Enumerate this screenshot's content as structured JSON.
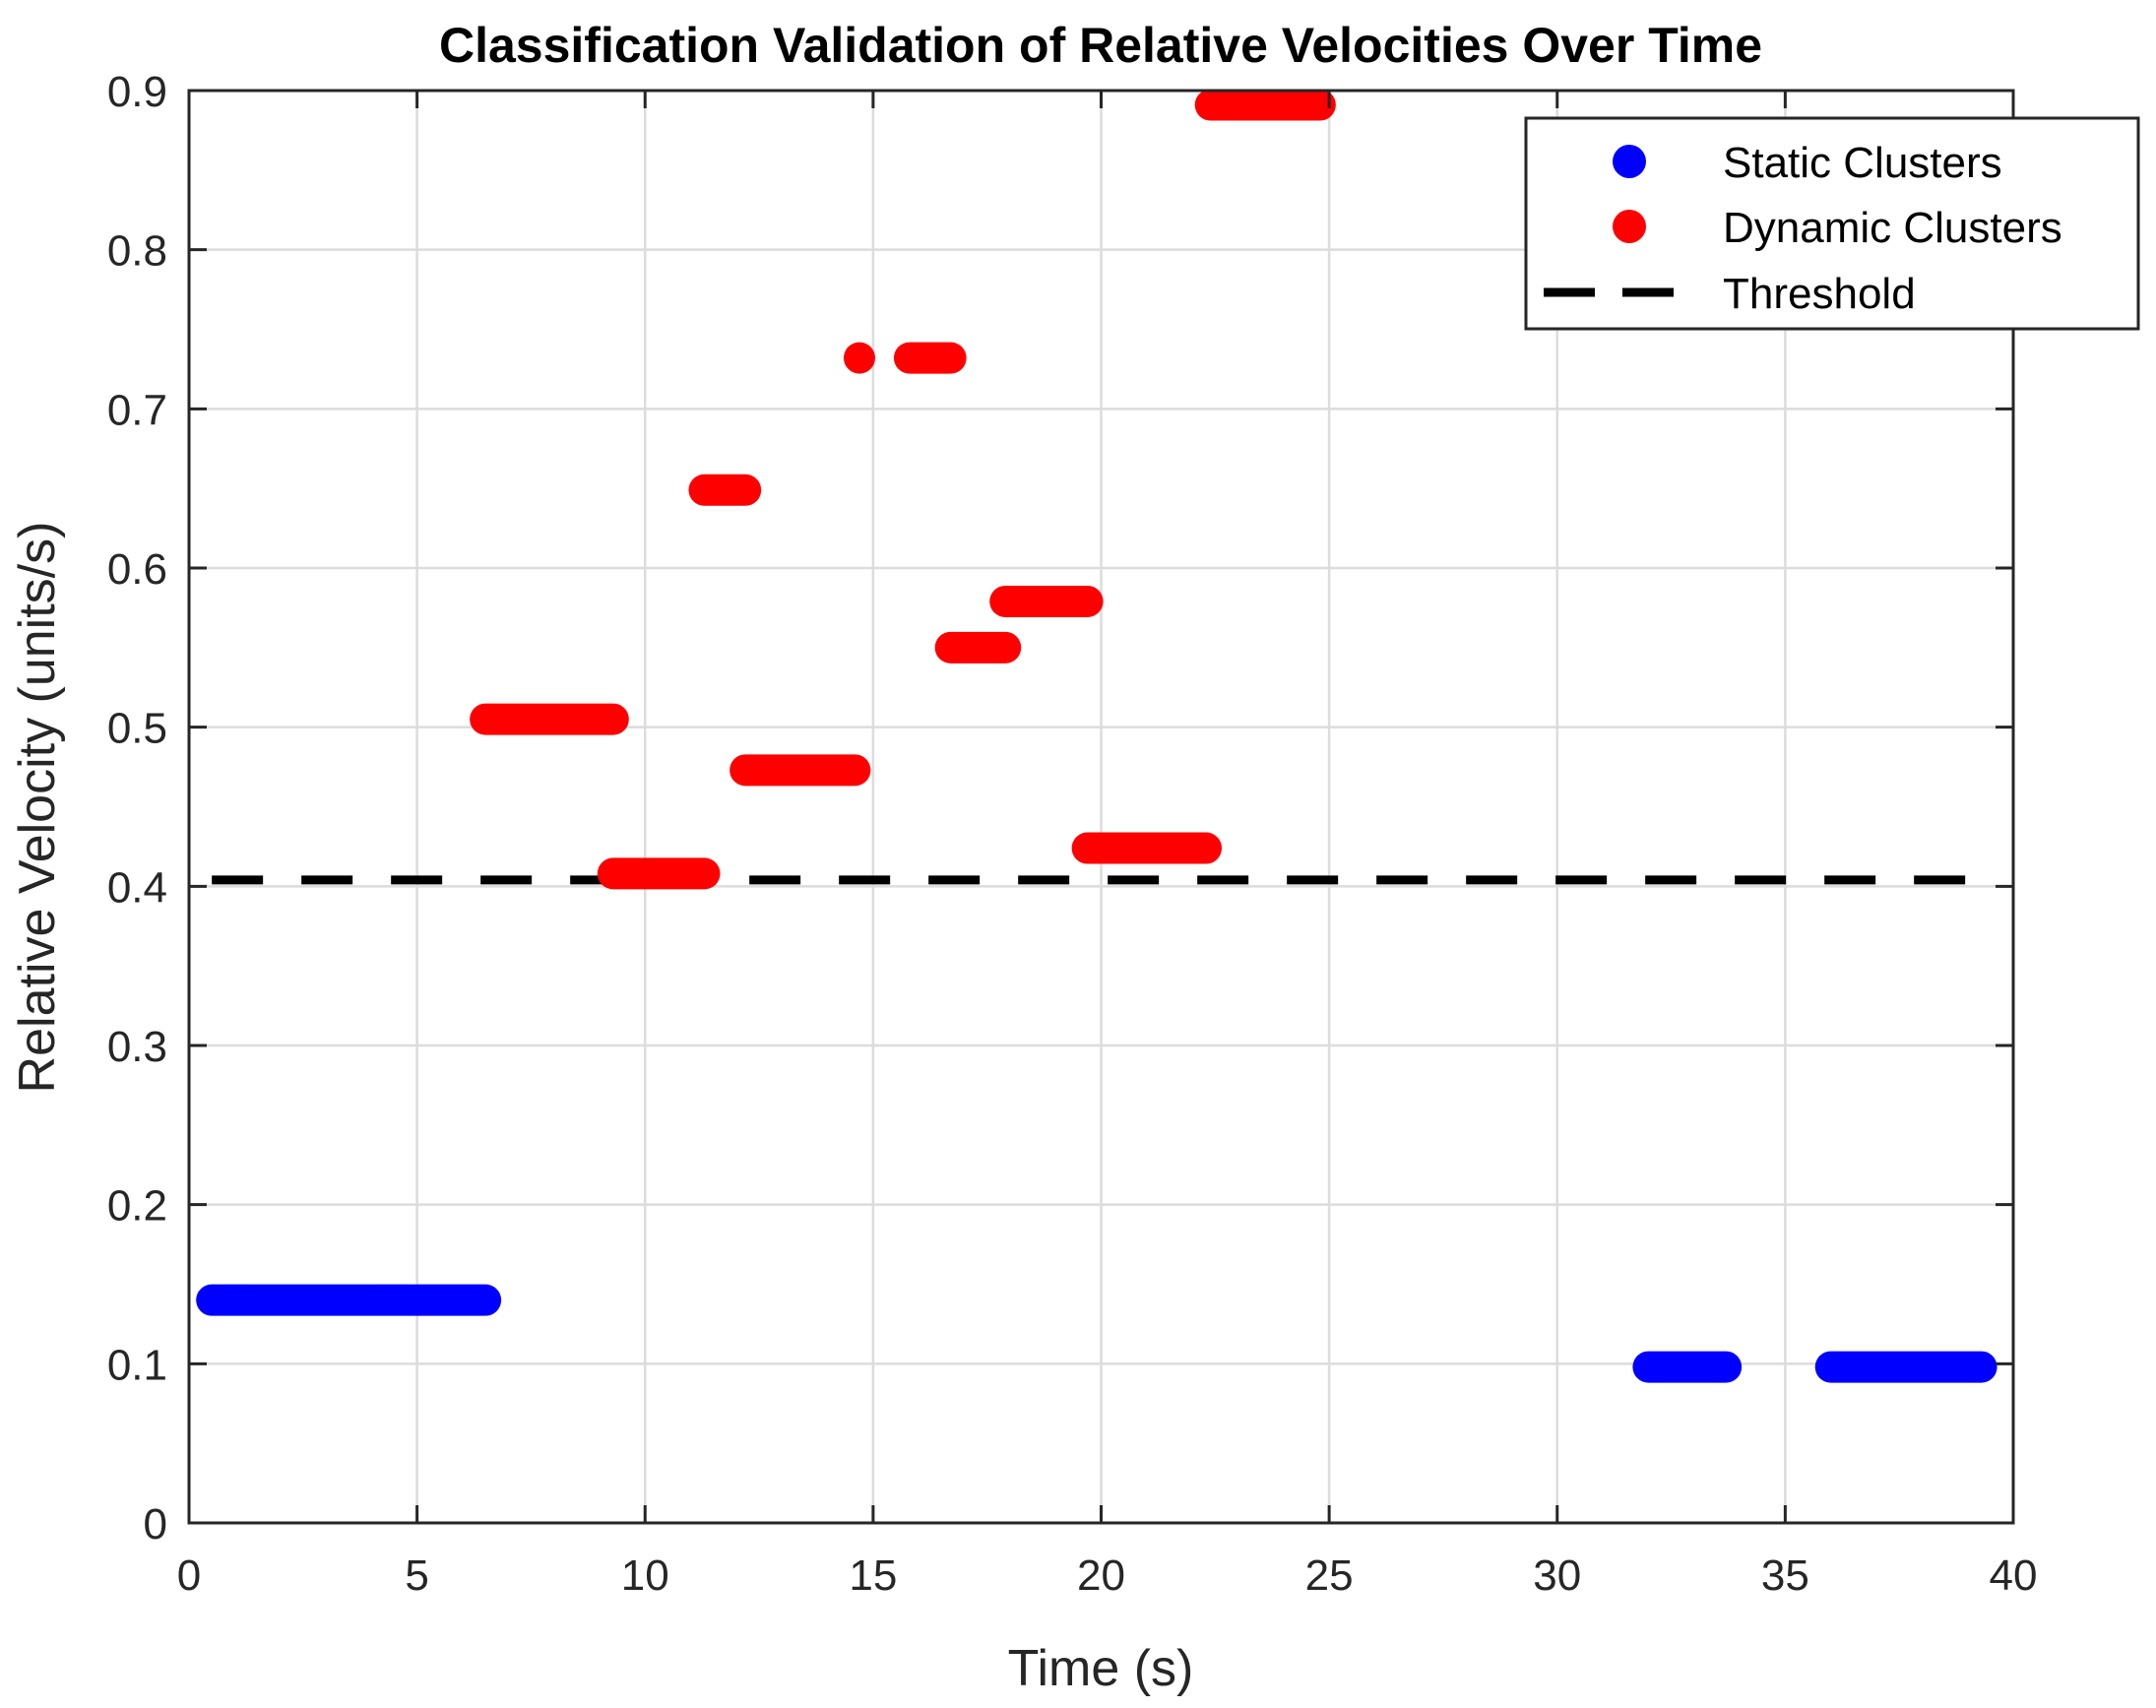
{
  "chart_data": {
    "type": "scatter",
    "title": "Classification Validation of Relative Velocities Over Time",
    "xlabel": "Time (s)",
    "ylabel": "Relative Velocity (units/s)",
    "xlim": [
      0,
      40
    ],
    "ylim": [
      0,
      0.9
    ],
    "xticks": [
      0,
      5,
      10,
      15,
      20,
      25,
      30,
      35,
      40
    ],
    "yticks": [
      0,
      0.1,
      0.2,
      0.3,
      0.4,
      0.5,
      0.6,
      0.7,
      0.8,
      0.9
    ],
    "xtick_labels": [
      "0",
      "5",
      "10",
      "15",
      "20",
      "25",
      "30",
      "35",
      "40"
    ],
    "ytick_labels": [
      "0",
      "0.1",
      "0.2",
      "0.3",
      "0.4",
      "0.5",
      "0.6",
      "0.7",
      "0.8",
      "0.9"
    ],
    "grid": true,
    "legend_position": "top-right",
    "series": [
      {
        "name": "Static Clusters",
        "color": "#0000ff",
        "marker": "filled-circle",
        "segments": [
          {
            "t_start": 0.5,
            "t_end": 6.5,
            "velocity": 0.14
          },
          {
            "t_start": 32.0,
            "t_end": 33.7,
            "velocity": 0.098
          },
          {
            "t_start": 36.0,
            "t_end": 39.3,
            "velocity": 0.098
          }
        ]
      },
      {
        "name": "Dynamic Clusters",
        "color": "#ff0000",
        "marker": "filled-circle",
        "segments": [
          {
            "t_start": 6.5,
            "t_end": 9.3,
            "velocity": 0.505
          },
          {
            "t_start": 9.3,
            "t_end": 11.3,
            "velocity": 0.408
          },
          {
            "t_start": 11.3,
            "t_end": 12.2,
            "velocity": 0.649
          },
          {
            "t_start": 12.2,
            "t_end": 14.6,
            "velocity": 0.473
          },
          {
            "t_start": 14.7,
            "t_end": 14.7,
            "velocity": 0.732
          },
          {
            "t_start": 15.8,
            "t_end": 16.7,
            "velocity": 0.732
          },
          {
            "t_start": 16.7,
            "t_end": 17.9,
            "velocity": 0.55
          },
          {
            "t_start": 17.9,
            "t_end": 19.7,
            "velocity": 0.579
          },
          {
            "t_start": 19.7,
            "t_end": 22.3,
            "velocity": 0.424
          },
          {
            "t_start": 22.4,
            "t_end": 24.8,
            "velocity": 0.891
          }
        ]
      },
      {
        "name": "Threshold",
        "color": "#000000",
        "style": "dashed",
        "x": [
          0.5,
          39.3
        ],
        "y": [
          0.404,
          0.404
        ]
      }
    ]
  }
}
